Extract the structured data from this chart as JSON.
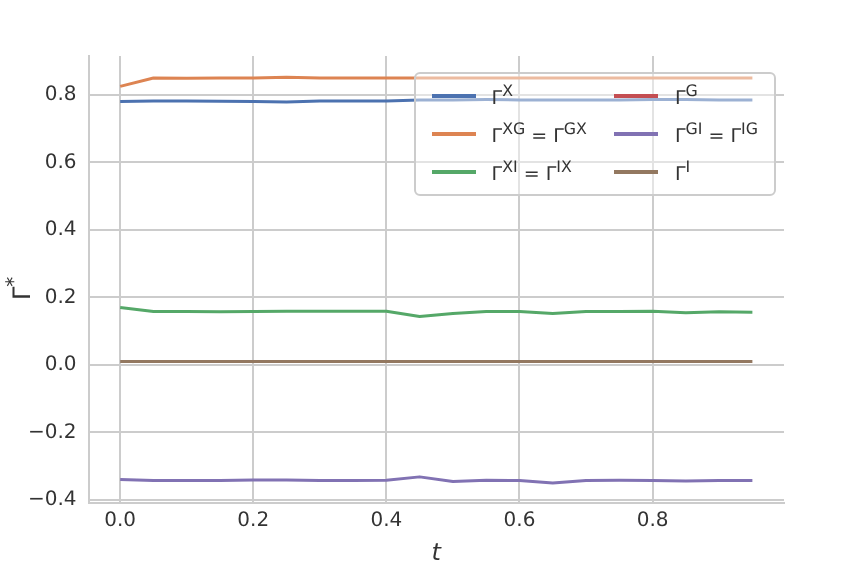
{
  "chart_data": {
    "type": "line",
    "xlabel": "t",
    "ylabel": "Γ$^{*}$",
    "x": [
      0,
      0.05,
      0.1,
      0.15,
      0.2,
      0.25,
      0.3,
      0.35,
      0.4,
      0.45,
      0.5,
      0.55,
      0.6,
      0.65,
      0.7,
      0.75,
      0.8,
      0.85,
      0.9,
      0.95
    ],
    "series": [
      {
        "name": "Γ$^{X}$",
        "color": "#4c72b0",
        "values": [
          0.78,
          0.782,
          0.782,
          0.781,
          0.78,
          0.779,
          0.782,
          0.782,
          0.782,
          0.785,
          0.785,
          0.786,
          0.785,
          0.785,
          0.785,
          0.785,
          0.786,
          0.786,
          0.785,
          0.785
        ]
      },
      {
        "name": "Γ$^{XG}$ = Γ$^{GX}$",
        "color": "#dd8452",
        "values": [
          0.825,
          0.85,
          0.849,
          0.85,
          0.85,
          0.852,
          0.85,
          0.85,
          0.85,
          0.85,
          0.85,
          0.85,
          0.85,
          0.85,
          0.85,
          0.85,
          0.85,
          0.85,
          0.85,
          0.85
        ]
      },
      {
        "name": "Γ$^{XI}$ = Γ$^{IX}$",
        "color": "#55a868",
        "values": [
          0.17,
          0.158,
          0.158,
          0.157,
          0.158,
          0.159,
          0.159,
          0.159,
          0.159,
          0.143,
          0.152,
          0.158,
          0.158,
          0.152,
          0.158,
          0.158,
          0.159,
          0.154,
          0.157,
          0.156
        ]
      },
      {
        "name": "Γ$^{G}$",
        "color": "#c44e52",
        "values": [
          null,
          null,
          null,
          null,
          null,
          null,
          null,
          null,
          null,
          null,
          null,
          null,
          null,
          null,
          null,
          null,
          null,
          null,
          null,
          null
        ]
      },
      {
        "name": "Γ$^{GI}$ = Γ$^{IG}$",
        "color": "#8172b3",
        "values": [
          -0.34,
          -0.343,
          -0.343,
          -0.343,
          -0.341,
          -0.341,
          -0.343,
          -0.343,
          -0.342,
          -0.332,
          -0.346,
          -0.342,
          -0.343,
          -0.35,
          -0.343,
          -0.342,
          -0.343,
          -0.344,
          -0.343,
          -0.343
        ]
      },
      {
        "name": "Γ$^{I}$",
        "color": "#937860",
        "values": [
          0.01,
          0.01,
          0.01,
          0.01,
          0.01,
          0.01,
          0.01,
          0.01,
          0.01,
          0.01,
          0.01,
          0.01,
          0.01,
          0.01,
          0.01,
          0.01,
          0.01,
          0.01,
          0.01,
          0.01
        ]
      }
    ],
    "xlim": [
      -0.0475,
      0.9975
    ],
    "ylim": [
      -0.41,
      0.915
    ],
    "xticks": [
      {
        "value": 0,
        "label": "0.0"
      },
      0.2,
      0.4,
      0.6,
      0.8
    ],
    "yticks": [
      -0.4,
      -0.2,
      {
        "value": 0,
        "label": "0.0"
      },
      0.2,
      0.4,
      0.6,
      0.8
    ],
    "grid": true,
    "legend": "top right"
  }
}
